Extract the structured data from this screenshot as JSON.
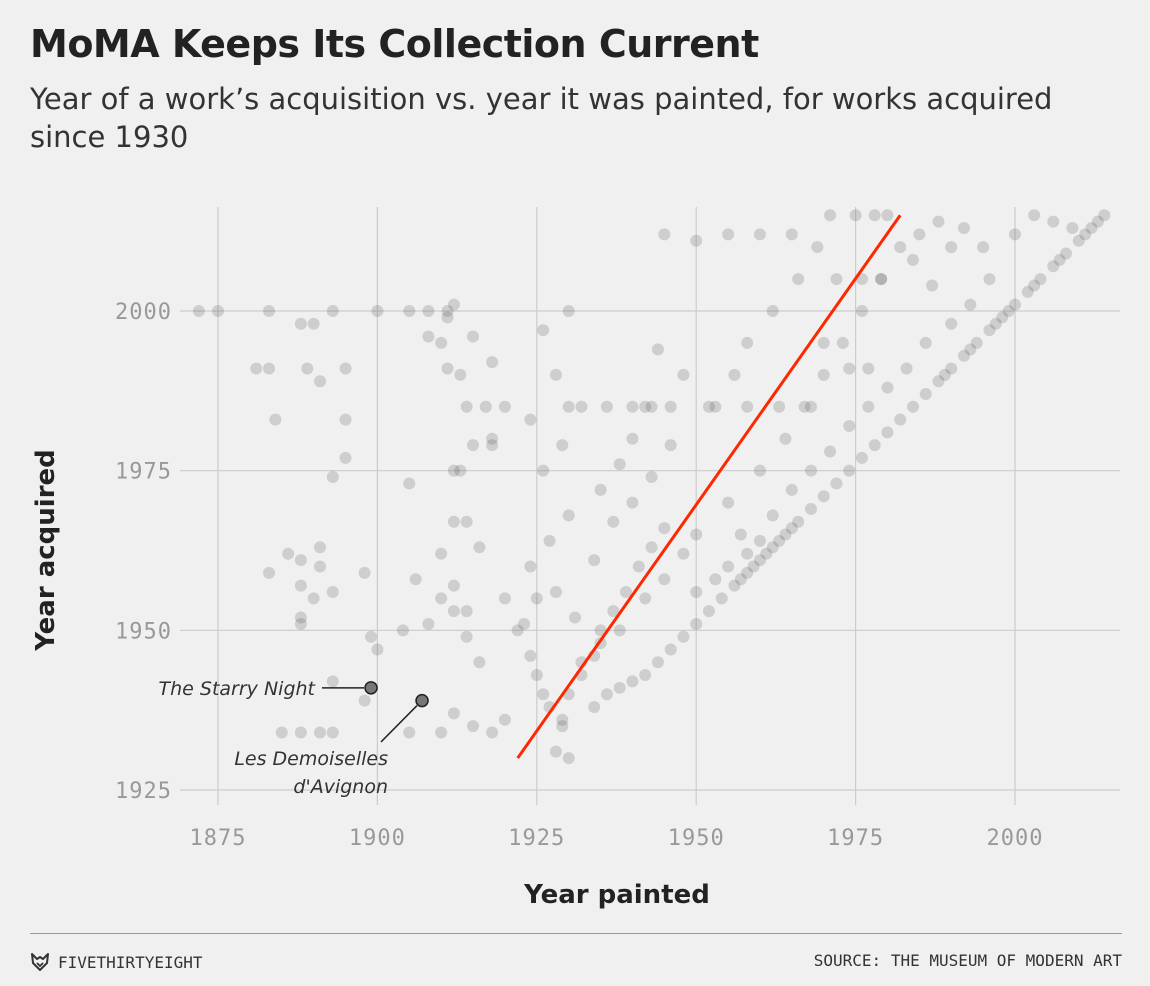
{
  "header": {
    "title": "MoMA Keeps Its Collection Current",
    "subtitle": "Year of a work’s acquisition vs. year it was painted, for works acquired since 1930"
  },
  "footer": {
    "brand": "FIVETHIRTYEIGHT",
    "brand_icon": "fivethirtyeight-fox-icon",
    "source": "SOURCE: THE MUSEUM OF MODERN ART"
  },
  "chart_data": {
    "type": "scatter",
    "xlabel": "Year painted",
    "ylabel": "Year acquired",
    "xlim": [
      1868,
      2016
    ],
    "ylim": [
      1922,
      2017
    ],
    "xticks": [
      "1875",
      "1900",
      "1925",
      "1950",
      "1975",
      "2000"
    ],
    "yticks": [
      "1925",
      "1950",
      "1975",
      "2000"
    ],
    "grid": true,
    "colors": {
      "points": "#555555",
      "trend": "#ff2700",
      "grid": "#cccccc"
    },
    "trend_line": {
      "x": [
        1922,
        1982
      ],
      "y": [
        1930,
        2015
      ]
    },
    "annotations": [
      {
        "label": "The Starry Night",
        "x": 1899,
        "y": 1941
      },
      {
        "label": "Les Demoiselles d'Avignon",
        "x": 1907,
        "y": 1939
      }
    ],
    "points": [
      [
        1872,
        2000
      ],
      [
        1875,
        2000
      ],
      [
        1883,
        2000
      ],
      [
        1893,
        2000
      ],
      [
        1900,
        2000
      ],
      [
        1905,
        2000
      ],
      [
        1908,
        2000
      ],
      [
        1911,
        2000
      ],
      [
        1912,
        2001
      ],
      [
        1888,
        1998
      ],
      [
        1890,
        1998
      ],
      [
        1908,
        1996
      ],
      [
        1910,
        1995
      ],
      [
        1911,
        1999
      ],
      [
        1915,
        1996
      ],
      [
        1926,
        1997
      ],
      [
        1930,
        2000
      ],
      [
        1881,
        1991
      ],
      [
        1883,
        1991
      ],
      [
        1891,
        1989
      ],
      [
        1895,
        1991
      ],
      [
        1889,
        1991
      ],
      [
        1911,
        1991
      ],
      [
        1913,
        1990
      ],
      [
        1918,
        1992
      ],
      [
        1928,
        1990
      ],
      [
        1884,
        1983
      ],
      [
        1895,
        1983
      ],
      [
        1895,
        1977
      ],
      [
        1893,
        1974
      ],
      [
        1905,
        1973
      ],
      [
        1912,
        1975
      ],
      [
        1913,
        1975
      ],
      [
        1918,
        1980
      ],
      [
        1924,
        1983
      ],
      [
        1930,
        1985
      ],
      [
        1883,
        1959
      ],
      [
        1886,
        1962
      ],
      [
        1888,
        1961
      ],
      [
        1888,
        1957
      ],
      [
        1890,
        1955
      ],
      [
        1891,
        1963
      ],
      [
        1891,
        1960
      ],
      [
        1893,
        1956
      ],
      [
        1898,
        1959
      ],
      [
        1888,
        1952
      ],
      [
        1888,
        1951
      ],
      [
        1899,
        1949
      ],
      [
        1904,
        1950
      ],
      [
        1906,
        1958
      ],
      [
        1908,
        1951
      ],
      [
        1910,
        1955
      ],
      [
        1912,
        1957
      ],
      [
        1914,
        1953
      ],
      [
        1893,
        1942
      ],
      [
        1898,
        1939
      ],
      [
        1900,
        1947
      ],
      [
        1905,
        1934
      ],
      [
        1910,
        1934
      ],
      [
        1912,
        1937
      ],
      [
        1915,
        1935
      ],
      [
        1918,
        1934
      ],
      [
        1920,
        1936
      ],
      [
        1885,
        1934
      ],
      [
        1888,
        1934
      ],
      [
        1891,
        1934
      ],
      [
        1893,
        1934
      ],
      [
        1899,
        1941
      ],
      [
        1907,
        1939
      ],
      [
        1922,
        1950
      ],
      [
        1924,
        1946
      ],
      [
        1925,
        1943
      ],
      [
        1926,
        1940
      ],
      [
        1927,
        1938
      ],
      [
        1929,
        1935
      ],
      [
        1930,
        1930
      ],
      [
        1928,
        1931
      ],
      [
        1929,
        1936
      ],
      [
        1930,
        1940
      ],
      [
        1932,
        1943
      ],
      [
        1934,
        1946
      ],
      [
        1935,
        1950
      ],
      [
        1937,
        1953
      ],
      [
        1939,
        1956
      ],
      [
        1941,
        1960
      ],
      [
        1943,
        1963
      ],
      [
        1945,
        1966
      ],
      [
        1934,
        1938
      ],
      [
        1936,
        1940
      ],
      [
        1938,
        1941
      ],
      [
        1940,
        1942
      ],
      [
        1942,
        1943
      ],
      [
        1944,
        1945
      ],
      [
        1946,
        1947
      ],
      [
        1948,
        1949
      ],
      [
        1950,
        1951
      ],
      [
        1952,
        1953
      ],
      [
        1954,
        1955
      ],
      [
        1956,
        1957
      ],
      [
        1957,
        1958
      ],
      [
        1958,
        1959
      ],
      [
        1959,
        1960
      ],
      [
        1960,
        1961
      ],
      [
        1961,
        1962
      ],
      [
        1962,
        1963
      ],
      [
        1963,
        1964
      ],
      [
        1964,
        1965
      ],
      [
        1965,
        1966
      ],
      [
        1966,
        1967
      ],
      [
        1968,
        1969
      ],
      [
        1970,
        1971
      ],
      [
        1972,
        1973
      ],
      [
        1974,
        1975
      ],
      [
        1976,
        1977
      ],
      [
        1978,
        1979
      ],
      [
        1980,
        1981
      ],
      [
        1982,
        1983
      ],
      [
        1984,
        1985
      ],
      [
        1986,
        1987
      ],
      [
        1988,
        1989
      ],
      [
        1990,
        1991
      ],
      [
        1992,
        1993
      ],
      [
        1994,
        1995
      ],
      [
        1996,
        1997
      ],
      [
        1998,
        1999
      ],
      [
        2000,
        2001
      ],
      [
        2002,
        2003
      ],
      [
        2004,
        2005
      ],
      [
        2006,
        2007
      ],
      [
        2008,
        2009
      ],
      [
        2010,
        2011
      ],
      [
        2012,
        2013
      ],
      [
        2014,
        2015
      ],
      [
        2013,
        2014
      ],
      [
        2011,
        2012
      ],
      [
        2007,
        2008
      ],
      [
        2003,
        2004
      ],
      [
        1999,
        2000
      ],
      [
        1997,
        1998
      ],
      [
        1993,
        1994
      ],
      [
        1989,
        1990
      ],
      [
        1955,
        1960
      ],
      [
        1958,
        1962
      ],
      [
        1960,
        1964
      ],
      [
        1953,
        1958
      ],
      [
        1950,
        1956
      ],
      [
        1957,
        1965
      ],
      [
        1962,
        1968
      ],
      [
        1965,
        1972
      ],
      [
        1968,
        1975
      ],
      [
        1971,
        1978
      ],
      [
        1974,
        1982
      ],
      [
        1977,
        1985
      ],
      [
        1980,
        1988
      ],
      [
        1983,
        1991
      ],
      [
        1986,
        1995
      ],
      [
        1990,
        1998
      ],
      [
        1993,
        2001
      ],
      [
        1996,
        2005
      ],
      [
        1950,
        1965
      ],
      [
        1948,
        1962
      ],
      [
        1945,
        1958
      ],
      [
        1942,
        1955
      ],
      [
        1938,
        1950
      ],
      [
        1935,
        1948
      ],
      [
        1932,
        1945
      ],
      [
        1955,
        1970
      ],
      [
        1960,
        1975
      ],
      [
        1964,
        1980
      ],
      [
        1967,
        1985
      ],
      [
        1970,
        1990
      ],
      [
        1973,
        1995
      ],
      [
        1976,
        2000
      ],
      [
        1979,
        2005
      ],
      [
        1982,
        2010
      ],
      [
        1985,
        2012
      ],
      [
        1988,
        2014
      ],
      [
        1940,
        1980
      ],
      [
        1943,
        1985
      ],
      [
        1946,
        1979
      ],
      [
        1938,
        1976
      ],
      [
        1935,
        1972
      ],
      [
        1930,
        1968
      ],
      [
        1927,
        1964
      ],
      [
        1924,
        1960
      ],
      [
        1926,
        1975
      ],
      [
        1929,
        1979
      ],
      [
        1932,
        1985
      ],
      [
        1936,
        1985
      ],
      [
        1940,
        1985
      ],
      [
        1944,
        1994
      ],
      [
        1948,
        1990
      ],
      [
        1952,
        1985
      ],
      [
        1956,
        1990
      ],
      [
        1958,
        1995
      ],
      [
        1962,
        2000
      ],
      [
        1966,
        2005
      ],
      [
        1969,
        2010
      ],
      [
        1971,
        2015
      ],
      [
        1965,
        2012
      ],
      [
        1960,
        2012
      ],
      [
        1955,
        2012
      ],
      [
        1950,
        2011
      ],
      [
        1945,
        2012
      ],
      [
        1975,
        2015
      ],
      [
        1978,
        2015
      ],
      [
        1980,
        2015
      ],
      [
        1984,
        2008
      ],
      [
        1987,
        2004
      ],
      [
        1990,
        2010
      ],
      [
        1992,
        2013
      ],
      [
        1995,
        2010
      ],
      [
        2000,
        2012
      ],
      [
        2003,
        2015
      ],
      [
        2006,
        2014
      ],
      [
        2009,
        2013
      ],
      [
        1972,
        2005
      ],
      [
        1976,
        2005
      ],
      [
        1979,
        2005
      ],
      [
        1970,
        1995
      ],
      [
        1974,
        1991
      ],
      [
        1977,
        1991
      ],
      [
        1968,
        1985
      ],
      [
        1963,
        1985
      ],
      [
        1958,
        1985
      ],
      [
        1953,
        1985
      ],
      [
        1946,
        1985
      ],
      [
        1942,
        1985
      ],
      [
        1917,
        1985
      ],
      [
        1914,
        1985
      ],
      [
        1920,
        1985
      ],
      [
        1915,
        1979
      ],
      [
        1918,
        1979
      ],
      [
        1912,
        1967
      ],
      [
        1914,
        1967
      ],
      [
        1916,
        1963
      ],
      [
        1910,
        1962
      ],
      [
        1912,
        1953
      ],
      [
        1914,
        1949
      ],
      [
        1916,
        1945
      ],
      [
        1920,
        1955
      ],
      [
        1923,
        1951
      ],
      [
        1925,
        1955
      ],
      [
        1928,
        1956
      ],
      [
        1931,
        1952
      ],
      [
        1934,
        1961
      ],
      [
        1937,
        1967
      ],
      [
        1940,
        1970
      ],
      [
        1943,
        1974
      ]
    ]
  }
}
